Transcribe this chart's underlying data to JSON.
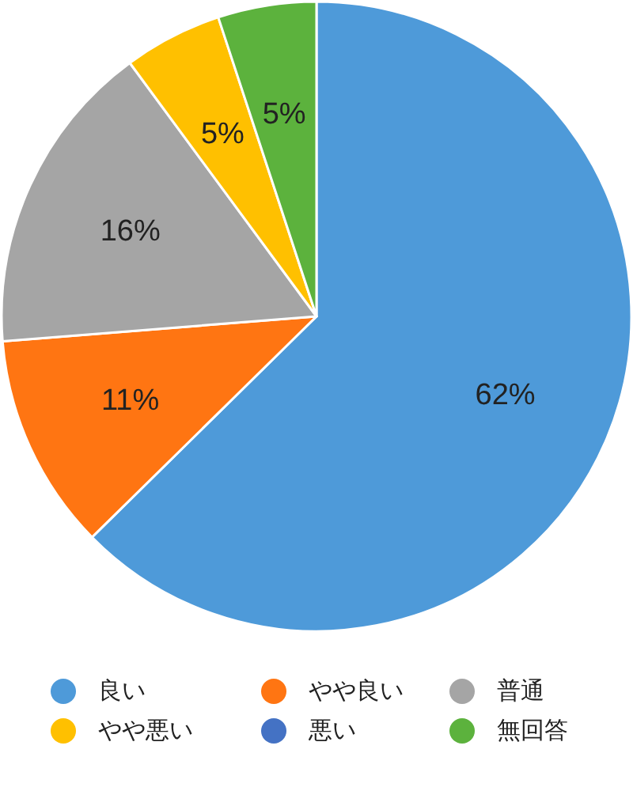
{
  "chart_data": {
    "type": "pie",
    "categories": [
      "良い",
      "やや良い",
      "普通",
      "やや悪い",
      "悪い",
      "無回答"
    ],
    "values": [
      62,
      11,
      16,
      5,
      0,
      5
    ],
    "colors": [
      "#4e9ad9",
      "#ff7512",
      "#a5a5a5",
      "#ffc000",
      "#4472c4",
      "#5cb23d"
    ],
    "value_labels": [
      "62%",
      "11%",
      "16%",
      "5%",
      null,
      "5%"
    ],
    "legend": "bottom"
  }
}
